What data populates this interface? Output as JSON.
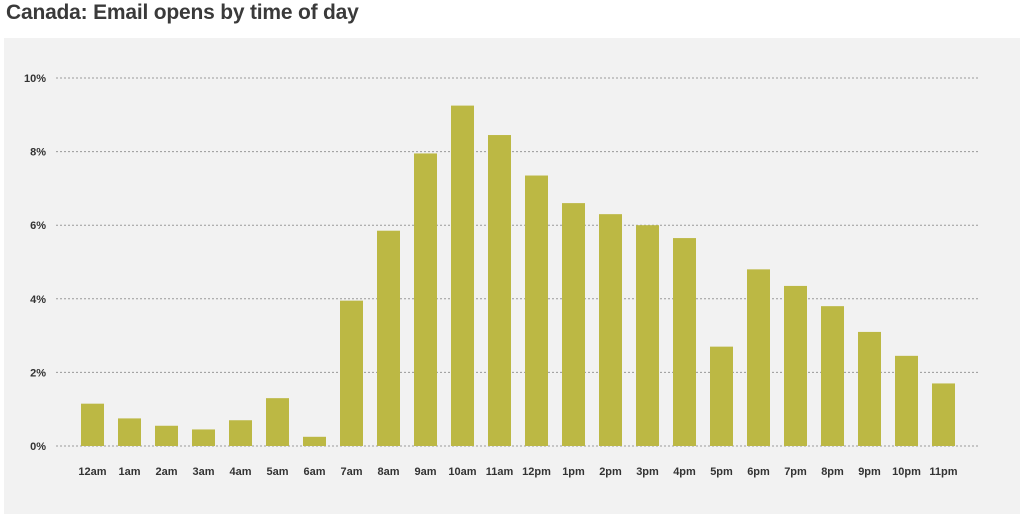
{
  "title": "Canada: Email opens by time of day",
  "chart_data": {
    "type": "bar",
    "categories": [
      "12am",
      "1am",
      "2am",
      "3am",
      "4am",
      "5am",
      "6am",
      "7am",
      "8am",
      "9am",
      "10am",
      "11am",
      "12pm",
      "1pm",
      "2pm",
      "3pm",
      "4pm",
      "5pm",
      "6pm",
      "7pm",
      "8pm",
      "9pm",
      "10pm",
      "11pm"
    ],
    "values": [
      1.15,
      0.75,
      0.55,
      0.45,
      0.7,
      1.3,
      0.25,
      3.95,
      5.85,
      7.95,
      9.25,
      8.45,
      7.35,
      6.6,
      6.3,
      6.0,
      5.65,
      2.7,
      4.8,
      4.35,
      3.8,
      3.1,
      2.45,
      1.7
    ],
    "yticks": [
      "0%",
      "2%",
      "4%",
      "6%",
      "8%",
      "10%"
    ],
    "ylim": [
      0,
      10
    ],
    "grid": true,
    "bar_color": "#bcb844",
    "grid_color": "#999999",
    "background": "#f2f2f2"
  }
}
